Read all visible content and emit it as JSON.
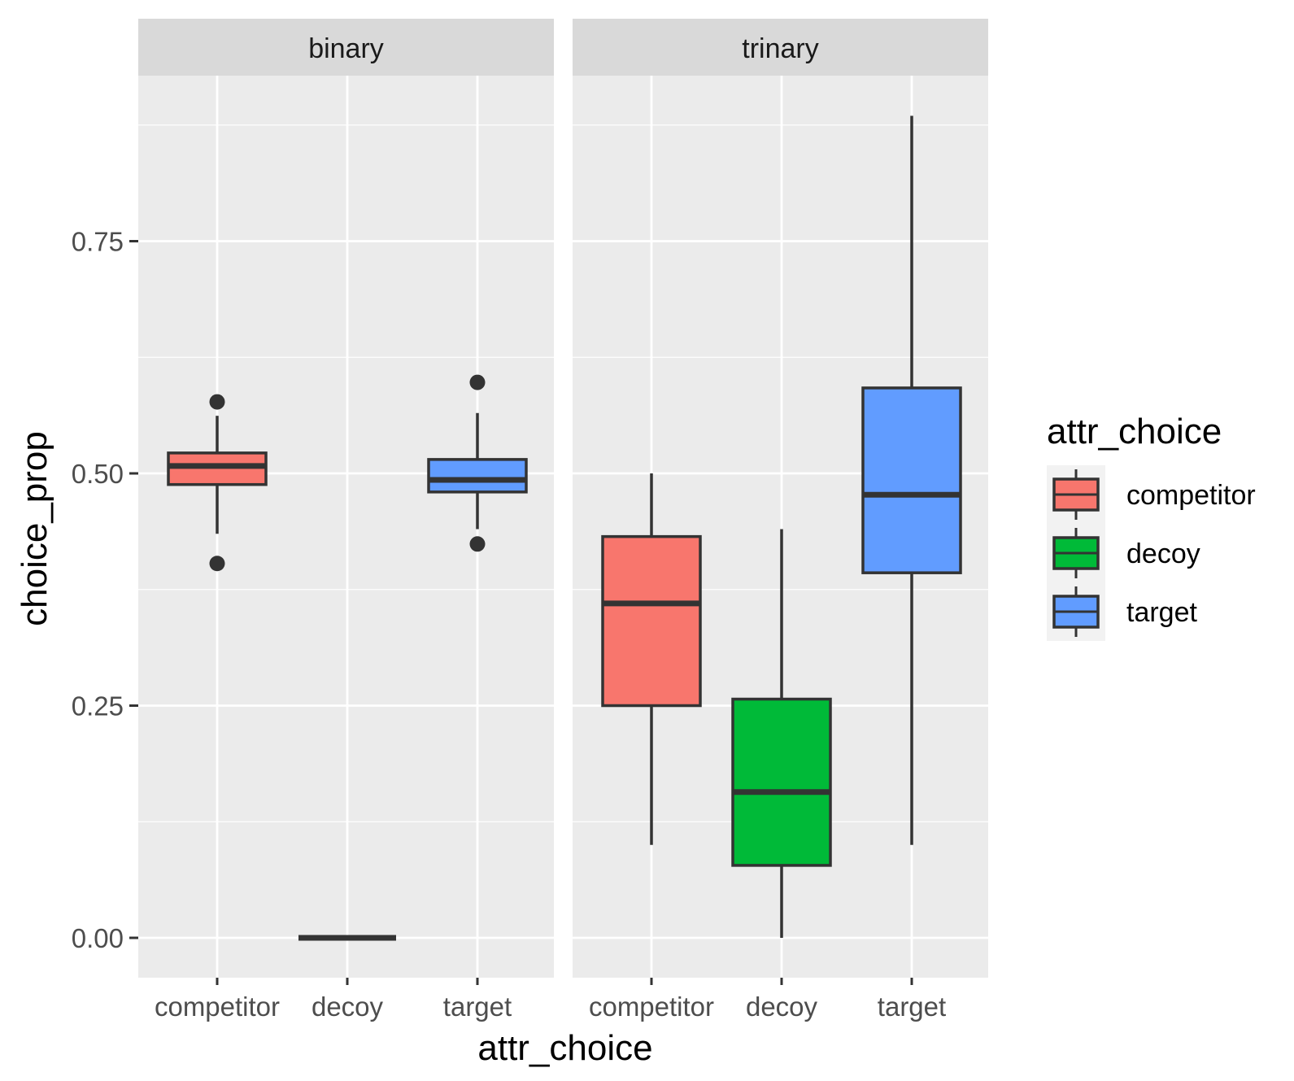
{
  "chart_data": {
    "type": "boxplot",
    "xlabel": "attr_choice",
    "ylabel": "choice_prop",
    "ylim": [
      -0.045,
      0.925
    ],
    "y_ticks": [
      0.0,
      0.25,
      0.5,
      0.75
    ],
    "y_tick_labels": [
      "0.00",
      "0.25",
      "0.50",
      "0.75"
    ],
    "categories": [
      "competitor",
      "decoy",
      "target"
    ],
    "colors": {
      "competitor": "#F8766D",
      "decoy": "#00BA38",
      "target": "#619CFF"
    },
    "legend": {
      "title": "attr_choice",
      "position": "right",
      "entries": [
        "competitor",
        "decoy",
        "target"
      ]
    },
    "facets": [
      {
        "label": "binary",
        "boxes": [
          {
            "category": "competitor",
            "min": 0.435,
            "q1": 0.488,
            "median": 0.508,
            "q3": 0.522,
            "max": 0.562,
            "outliers": [
              0.577,
              0.403
            ]
          },
          {
            "category": "decoy",
            "min": 0.0,
            "q1": 0.0,
            "median": 0.0,
            "q3": 0.0,
            "max": 0.0,
            "outliers": []
          },
          {
            "category": "target",
            "min": 0.44,
            "q1": 0.48,
            "median": 0.493,
            "q3": 0.515,
            "max": 0.565,
            "outliers": [
              0.598,
              0.424
            ]
          }
        ]
      },
      {
        "label": "trinary",
        "boxes": [
          {
            "category": "competitor",
            "min": 0.1,
            "q1": 0.25,
            "median": 0.36,
            "q3": 0.432,
            "max": 0.5,
            "outliers": []
          },
          {
            "category": "decoy",
            "min": 0.0,
            "q1": 0.078,
            "median": 0.157,
            "q3": 0.257,
            "max": 0.44,
            "outliers": []
          },
          {
            "category": "target",
            "min": 0.1,
            "q1": 0.393,
            "median": 0.477,
            "q3": 0.592,
            "max": 0.885,
            "outliers": []
          }
        ]
      }
    ]
  }
}
